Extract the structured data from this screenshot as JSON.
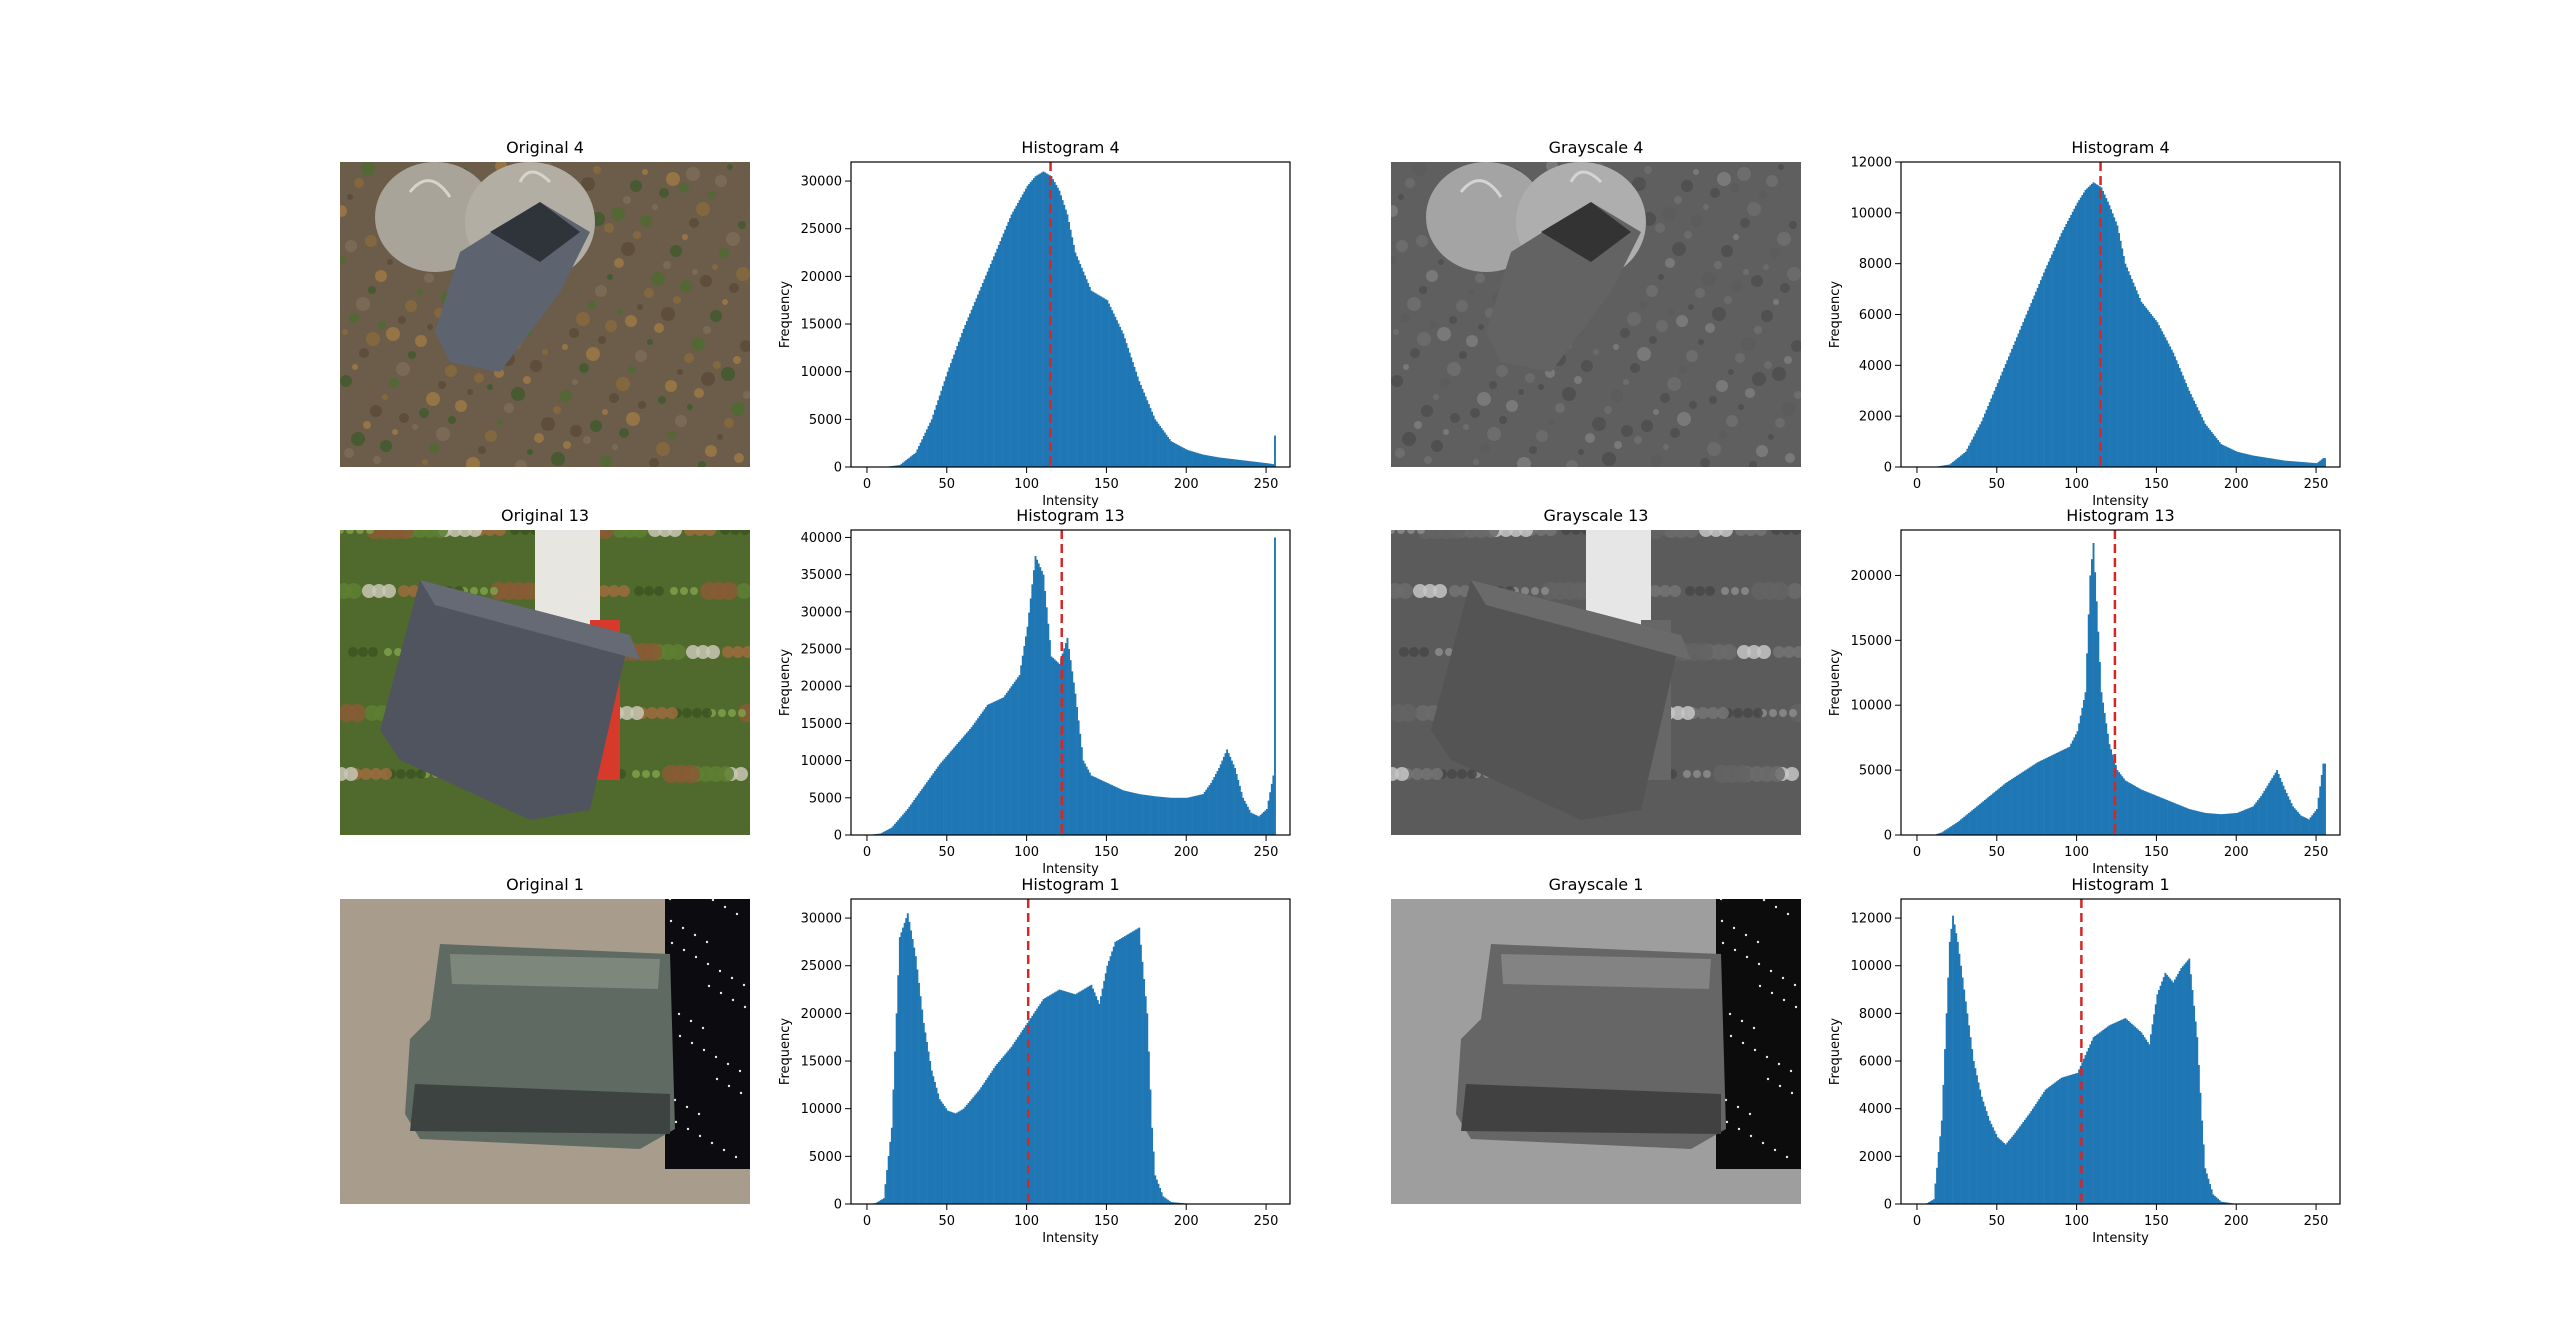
{
  "figure": {
    "rows": [
      {
        "original": {
          "title": "Original 4"
        },
        "hist_color": {
          "title": "Histogram 4"
        },
        "grayscale": {
          "title": "Grayscale 4"
        },
        "hist_gray": {
          "title": "Histogram 4"
        }
      },
      {
        "original": {
          "title": "Original 13"
        },
        "hist_color": {
          "title": "Histogram 13"
        },
        "grayscale": {
          "title": "Grayscale 13"
        },
        "hist_gray": {
          "title": "Histogram 13"
        }
      },
      {
        "original": {
          "title": "Original 1"
        },
        "hist_color": {
          "title": "Histogram 1"
        },
        "grayscale": {
          "title": "Grayscale 1"
        },
        "hist_gray": {
          "title": "Histogram 1"
        }
      }
    ]
  },
  "style": {
    "bar_color": "#1f77b4",
    "mean_line_color": "#d62728",
    "axis_color": "#000000"
  },
  "chart_data": [
    {
      "type": "bar",
      "title": "Histogram 4",
      "xlabel": "Intensity",
      "ylabel": "Frequency",
      "xlim": [
        -10,
        265
      ],
      "ylim": [
        0,
        32000
      ],
      "xticks": [
        0,
        50,
        100,
        150,
        200,
        250
      ],
      "yticks": [
        0,
        5000,
        10000,
        15000,
        20000,
        25000,
        30000
      ],
      "mean_line": 115,
      "grid": false,
      "x": [
        0,
        10,
        20,
        30,
        40,
        50,
        60,
        70,
        80,
        90,
        100,
        105,
        110,
        115,
        120,
        125,
        130,
        140,
        150,
        160,
        170,
        180,
        190,
        200,
        210,
        220,
        230,
        240,
        250,
        254,
        255
      ],
      "values": [
        0,
        0,
        200,
        1500,
        5000,
        10000,
        14500,
        18500,
        22500,
        26500,
        29500,
        30500,
        31000,
        30500,
        29000,
        26500,
        22500,
        18500,
        17500,
        14000,
        9000,
        5000,
        2700,
        1800,
        1300,
        1000,
        800,
        600,
        400,
        300,
        3300
      ]
    },
    {
      "type": "bar",
      "title": "Histogram 4",
      "xlabel": "Intensity",
      "ylabel": "Frequency",
      "xlim": [
        -10,
        265
      ],
      "ylim": [
        0,
        12000
      ],
      "xticks": [
        0,
        50,
        100,
        150,
        200,
        250
      ],
      "yticks": [
        0,
        2000,
        4000,
        6000,
        8000,
        10000,
        12000
      ],
      "mean_line": 115,
      "grid": false,
      "x": [
        0,
        10,
        20,
        30,
        40,
        50,
        60,
        70,
        80,
        90,
        100,
        105,
        110,
        115,
        120,
        125,
        130,
        140,
        150,
        160,
        170,
        180,
        190,
        200,
        210,
        220,
        230,
        240,
        250,
        254
      ],
      "values": [
        0,
        0,
        100,
        600,
        1800,
        3300,
        4800,
        6300,
        7800,
        9200,
        10400,
        10900,
        11200,
        11000,
        10300,
        9500,
        8000,
        6500,
        5700,
        4500,
        3000,
        1700,
        900,
        600,
        450,
        350,
        250,
        200,
        150,
        350
      ]
    },
    {
      "type": "bar",
      "title": "Histogram 13",
      "xlabel": "Intensity",
      "ylabel": "Frequency",
      "xlim": [
        -10,
        265
      ],
      "ylim": [
        0,
        41000
      ],
      "xticks": [
        0,
        50,
        100,
        150,
        200,
        250
      ],
      "yticks": [
        0,
        5000,
        10000,
        15000,
        20000,
        25000,
        30000,
        35000,
        40000
      ],
      "mean_line": 122,
      "grid": false,
      "x": [
        0,
        8,
        15,
        25,
        35,
        45,
        55,
        65,
        75,
        85,
        95,
        100,
        105,
        110,
        115,
        120,
        125,
        130,
        135,
        140,
        150,
        160,
        170,
        180,
        190,
        200,
        210,
        215,
        220,
        225,
        230,
        235,
        240,
        245,
        250,
        254,
        255
      ],
      "values": [
        0,
        200,
        1000,
        3500,
        6500,
        9500,
        12000,
        14500,
        17500,
        18500,
        21500,
        28000,
        37500,
        35000,
        24000,
        23000,
        26500,
        19000,
        10000,
        8000,
        7000,
        6000,
        5500,
        5200,
        5000,
        5000,
        5500,
        7000,
        9000,
        11500,
        9000,
        5000,
        3000,
        2500,
        3500,
        8000,
        40000
      ]
    },
    {
      "type": "bar",
      "title": "Histogram 13",
      "xlabel": "Intensity",
      "ylabel": "Frequency",
      "xlim": [
        -10,
        265
      ],
      "ylim": [
        0,
        23500
      ],
      "xticks": [
        0,
        50,
        100,
        150,
        200,
        250
      ],
      "yticks": [
        0,
        5000,
        10000,
        15000,
        20000
      ],
      "mean_line": 124,
      "grid": false,
      "x": [
        0,
        10,
        15,
        25,
        35,
        45,
        55,
        65,
        75,
        85,
        95,
        100,
        105,
        108,
        110,
        112,
        115,
        120,
        125,
        130,
        140,
        150,
        160,
        170,
        180,
        190,
        200,
        210,
        215,
        220,
        225,
        230,
        235,
        240,
        245,
        250,
        254
      ],
      "values": [
        0,
        0,
        200,
        1000,
        2000,
        3000,
        4000,
        4800,
        5600,
        6200,
        6800,
        8000,
        11000,
        20000,
        22500,
        18000,
        11000,
        7000,
        5000,
        4200,
        3500,
        3000,
        2500,
        2000,
        1700,
        1600,
        1700,
        2200,
        3000,
        4000,
        5000,
        3500,
        2200,
        1500,
        1200,
        2000,
        5500
      ]
    },
    {
      "type": "bar",
      "title": "Histogram 1",
      "xlabel": "Intensity",
      "ylabel": "Frequency",
      "xlim": [
        -10,
        265
      ],
      "ylim": [
        0,
        32000
      ],
      "xticks": [
        0,
        50,
        100,
        150,
        200,
        250
      ],
      "yticks": [
        0,
        5000,
        10000,
        15000,
        20000,
        25000,
        30000
      ],
      "mean_line": 101,
      "grid": false,
      "x": [
        0,
        5,
        10,
        15,
        20,
        25,
        30,
        35,
        40,
        45,
        50,
        55,
        60,
        70,
        80,
        90,
        100,
        110,
        120,
        130,
        140,
        145,
        150,
        155,
        160,
        165,
        170,
        175,
        178,
        180,
        185,
        190,
        200,
        210,
        255
      ],
      "values": [
        0,
        100,
        600,
        8000,
        28000,
        30500,
        26000,
        19000,
        14000,
        11000,
        9800,
        9500,
        10000,
        12000,
        14500,
        16500,
        19000,
        21500,
        22500,
        22000,
        23000,
        21000,
        25000,
        27500,
        28000,
        28500,
        29000,
        20000,
        8000,
        3000,
        800,
        200,
        50,
        0,
        0
      ]
    },
    {
      "type": "bar",
      "title": "Histogram 1",
      "xlabel": "Intensity",
      "ylabel": "Frequency",
      "xlim": [
        -10,
        265
      ],
      "ylim": [
        0,
        12800
      ],
      "xticks": [
        0,
        50,
        100,
        150,
        200,
        250
      ],
      "yticks": [
        0,
        2000,
        4000,
        6000,
        8000,
        10000,
        12000
      ],
      "mean_line": 103,
      "grid": false,
      "x": [
        0,
        5,
        10,
        15,
        20,
        22,
        25,
        30,
        35,
        40,
        45,
        50,
        55,
        60,
        70,
        80,
        90,
        100,
        110,
        120,
        130,
        140,
        145,
        150,
        155,
        160,
        165,
        170,
        175,
        178,
        180,
        185,
        190,
        200,
        255
      ],
      "values": [
        0,
        0,
        200,
        3500,
        11000,
        12100,
        11000,
        8500,
        6000,
        4500,
        3500,
        2800,
        2500,
        2900,
        3800,
        4800,
        5300,
        5500,
        7000,
        7500,
        7800,
        7200,
        6700,
        8800,
        9700,
        9300,
        9900,
        10300,
        7000,
        3500,
        1500,
        400,
        100,
        0,
        0
      ]
    }
  ]
}
